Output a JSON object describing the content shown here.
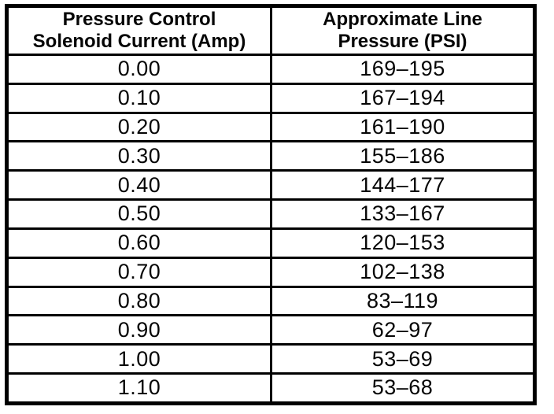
{
  "table": {
    "headers": [
      {
        "line1": "Pressure Control",
        "line2": "Solenoid Current (Amp)"
      },
      {
        "line1": "Approximate Line",
        "line2": "Pressure (PSI)"
      }
    ],
    "rows": [
      {
        "current": "0.00",
        "pressure": "169–195"
      },
      {
        "current": "0.10",
        "pressure": "167–194"
      },
      {
        "current": "0.20",
        "pressure": "161–190"
      },
      {
        "current": "0.30",
        "pressure": "155–186"
      },
      {
        "current": "0.40",
        "pressure": "144–177"
      },
      {
        "current": "0.50",
        "pressure": "133–167"
      },
      {
        "current": "0.60",
        "pressure": "120–153"
      },
      {
        "current": "0.70",
        "pressure": "102–138"
      },
      {
        "current": "0.80",
        "pressure": "83–119"
      },
      {
        "current": "0.90",
        "pressure": "62–97"
      },
      {
        "current": "1.00",
        "pressure": "53–69"
      },
      {
        "current": "1.10",
        "pressure": "53–68"
      }
    ]
  }
}
